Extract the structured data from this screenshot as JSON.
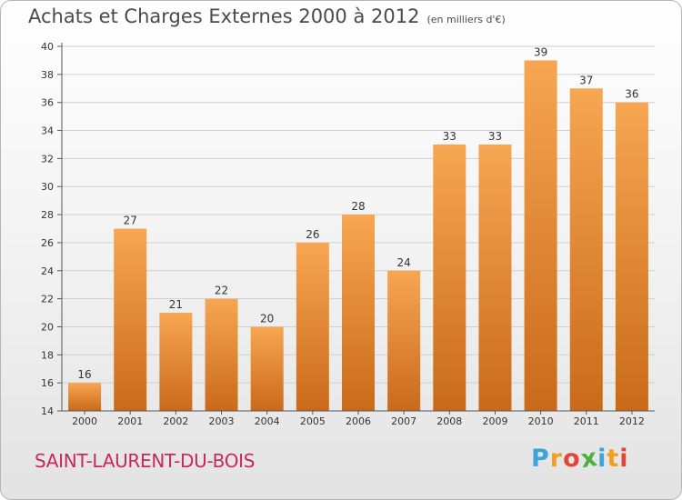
{
  "header": {
    "title": "Achats et Charges Externes 2000 à 2012",
    "subtitle": "(en milliers d'€)"
  },
  "footer": {
    "city": "SAINT-LAURENT-DU-BOIS",
    "logo_letters": [
      "P",
      "r",
      "o",
      "x",
      "i",
      "t",
      "i"
    ]
  },
  "colors": {
    "bar_top": "#f7a652",
    "bar_bottom": "#c96a1a",
    "grid": "#cfcfcf",
    "axis": "#555555",
    "city": "#c8285a"
  },
  "chart_data": {
    "type": "bar",
    "title": "Achats et Charges Externes 2000 à 2012",
    "subtitle": "(en milliers d'€)",
    "categories": [
      "2000",
      "2001",
      "2002",
      "2003",
      "2004",
      "2005",
      "2006",
      "2007",
      "2008",
      "2009",
      "2010",
      "2011",
      "2012"
    ],
    "values": [
      16,
      27,
      21,
      22,
      20,
      26,
      28,
      24,
      33,
      33,
      39,
      37,
      36
    ],
    "ylim": [
      14,
      40
    ],
    "yticks": [
      14,
      16,
      18,
      20,
      22,
      24,
      26,
      28,
      30,
      32,
      34,
      36,
      38,
      40
    ],
    "grid": true,
    "data_labels": true
  }
}
